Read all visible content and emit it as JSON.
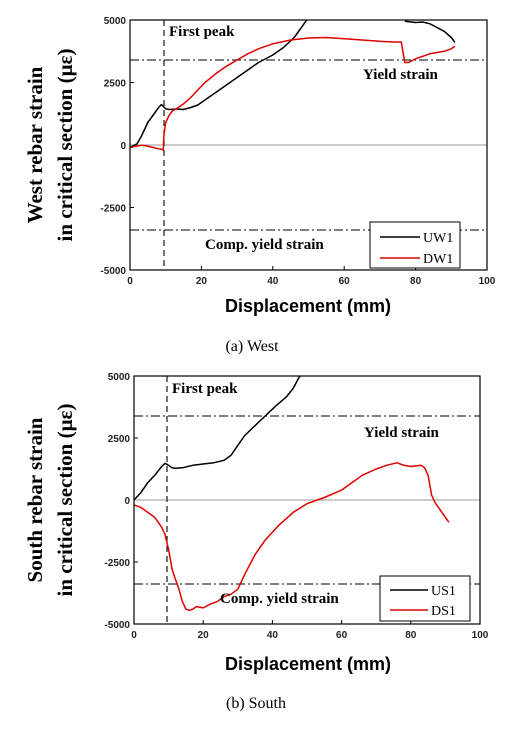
{
  "chart_data": [
    {
      "type": "line",
      "caption": "(a) West",
      "ylabel_lines": [
        "West rebar strain",
        "in critical section (με)"
      ],
      "xlabel": "Displacement (mm)",
      "xlim": [
        0,
        100
      ],
      "ylim": [
        -5000,
        5000
      ],
      "xticks": [
        "0",
        "20",
        "40",
        "60",
        "80",
        "100"
      ],
      "yticks": [
        "5000",
        "2500",
        "0",
        "-2500",
        "-5000"
      ],
      "annotations": {
        "first_peak": "First peak",
        "yield": "Yield strain",
        "comp_yield": "Comp. yield strain"
      },
      "first_peak_x": 9.5,
      "yield_strain": 3400,
      "comp_yield_strain": -3400,
      "legend_position": "bottom-right",
      "series": [
        {
          "name": "UW1",
          "color": "#000000",
          "segments": [
            [
              [
                0,
                -100
              ],
              [
                1,
                -20
              ],
              [
                2,
                50
              ],
              [
                3,
                300
              ],
              [
                4,
                600
              ],
              [
                5,
                900
              ],
              [
                6,
                1100
              ],
              [
                7,
                1300
              ],
              [
                8,
                1500
              ],
              [
                8.8,
                1620
              ],
              [
                9.3,
                1550
              ],
              [
                10,
                1450
              ],
              [
                11,
                1420
              ],
              [
                13,
                1440
              ],
              [
                15,
                1420
              ],
              [
                17,
                1500
              ],
              [
                19,
                1600
              ],
              [
                21,
                1800
              ],
              [
                23,
                2000
              ],
              [
                25,
                2200
              ],
              [
                27,
                2400
              ],
              [
                30,
                2700
              ],
              [
                33,
                3000
              ],
              [
                36,
                3300
              ],
              [
                40,
                3600
              ],
              [
                43,
                3900
              ],
              [
                46,
                4300
              ],
              [
                48,
                4700
              ],
              [
                49.5,
                5000
              ]
            ],
            [
              [
                77,
                4950
              ],
              [
                80,
                4900
              ],
              [
                82,
                4920
              ],
              [
                84,
                4850
              ],
              [
                86,
                4700
              ],
              [
                88,
                4550
              ],
              [
                90,
                4300
              ],
              [
                91,
                4100
              ]
            ]
          ]
        },
        {
          "name": "DW1",
          "color": "#e00000",
          "segments": [
            [
              [
                0,
                -100
              ],
              [
                1,
                -70
              ],
              [
                2,
                -40
              ],
              [
                3,
                -10
              ],
              [
                4,
                -20
              ],
              [
                6,
                -80
              ],
              [
                8,
                -150
              ],
              [
                9,
                -180
              ],
              [
                9.3,
                -200
              ],
              [
                9.5,
                400
              ],
              [
                10,
                900
              ],
              [
                11,
                1200
              ],
              [
                12,
                1380
              ],
              [
                13,
                1450
              ],
              [
                15,
                1650
              ],
              [
                17,
                1900
              ],
              [
                19,
                2200
              ],
              [
                21,
                2500
              ],
              [
                24,
                2850
              ],
              [
                27,
                3150
              ],
              [
                30,
                3400
              ],
              [
                33,
                3650
              ],
              [
                36,
                3850
              ],
              [
                40,
                4050
              ],
              [
                45,
                4200
              ],
              [
                50,
                4280
              ],
              [
                55,
                4300
              ],
              [
                60,
                4250
              ],
              [
                65,
                4200
              ],
              [
                70,
                4150
              ],
              [
                74,
                4120
              ],
              [
                76,
                4120
              ],
              [
                76.5,
                3700
              ],
              [
                77,
                3300
              ],
              [
                78,
                3300
              ],
              [
                80,
                3450
              ],
              [
                82,
                3550
              ],
              [
                84,
                3650
              ],
              [
                86,
                3700
              ],
              [
                88,
                3750
              ],
              [
                90,
                3850
              ],
              [
                91,
                3950
              ]
            ]
          ]
        }
      ]
    },
    {
      "type": "line",
      "caption": "(b) South",
      "ylabel_lines": [
        "South rebar strain",
        "in critical section (με)"
      ],
      "xlabel": "Displacement (mm)",
      "xlim": [
        0,
        100
      ],
      "ylim": [
        -5000,
        5000
      ],
      "xticks": [
        "0",
        "20",
        "40",
        "60",
        "80",
        "100"
      ],
      "yticks": [
        "5000",
        "2500",
        "0",
        "-2500",
        "-5000"
      ],
      "annotations": {
        "first_peak": "First peak",
        "yield": "Yield strain",
        "comp_yield": "Comp. yield strain"
      },
      "first_peak_x": 9.5,
      "yield_strain": 3400,
      "comp_yield_strain": -3400,
      "legend_position": "bottom-right",
      "series": [
        {
          "name": "US1",
          "color": "#000000",
          "segments": [
            [
              [
                0,
                0
              ],
              [
                2,
                300
              ],
              [
                4,
                700
              ],
              [
                6,
                1000
              ],
              [
                8,
                1350
              ],
              [
                9,
                1480
              ],
              [
                10,
                1400
              ],
              [
                11,
                1300
              ],
              [
                12,
                1280
              ],
              [
                14,
                1300
              ],
              [
                17,
                1400
              ],
              [
                20,
                1450
              ],
              [
                23,
                1500
              ],
              [
                26,
                1600
              ],
              [
                28,
                1800
              ],
              [
                30,
                2200
              ],
              [
                32,
                2600
              ],
              [
                35,
                3000
              ],
              [
                38,
                3400
              ],
              [
                41,
                3800
              ],
              [
                44,
                4150
              ],
              [
                46,
                4500
              ],
              [
                47.5,
                4900
              ],
              [
                48,
                5000
              ]
            ]
          ]
        },
        {
          "name": "DS1",
          "color": "#e00000",
          "segments": [
            [
              [
                0,
                -200
              ],
              [
                2,
                -300
              ],
              [
                4,
                -500
              ],
              [
                6,
                -700
              ],
              [
                8,
                -1100
              ],
              [
                9,
                -1400
              ],
              [
                10,
                -2000
              ],
              [
                11,
                -2800
              ],
              [
                12,
                -3200
              ],
              [
                13,
                -3600
              ],
              [
                14,
                -4100
              ],
              [
                15,
                -4400
              ],
              [
                16,
                -4450
              ],
              [
                17,
                -4400
              ],
              [
                18,
                -4300
              ],
              [
                20,
                -4350
              ],
              [
                22,
                -4200
              ],
              [
                24,
                -4100
              ],
              [
                26,
                -3900
              ],
              [
                28,
                -3800
              ],
              [
                30,
                -3600
              ],
              [
                32,
                -3000
              ],
              [
                35,
                -2200
              ],
              [
                38,
                -1600
              ],
              [
                42,
                -1000
              ],
              [
                46,
                -500
              ],
              [
                50,
                -150
              ],
              [
                55,
                100
              ],
              [
                60,
                400
              ],
              [
                63,
                700
              ],
              [
                66,
                1000
              ],
              [
                70,
                1250
              ],
              [
                73,
                1400
              ],
              [
                76,
                1500
              ],
              [
                78,
                1400
              ],
              [
                80,
                1350
              ],
              [
                83,
                1400
              ],
              [
                84,
                1300
              ],
              [
                85,
                1000
              ],
              [
                86,
                200
              ],
              [
                87,
                -100
              ],
              [
                89,
                -500
              ],
              [
                90,
                -700
              ],
              [
                91,
                -900
              ]
            ]
          ]
        }
      ]
    }
  ]
}
